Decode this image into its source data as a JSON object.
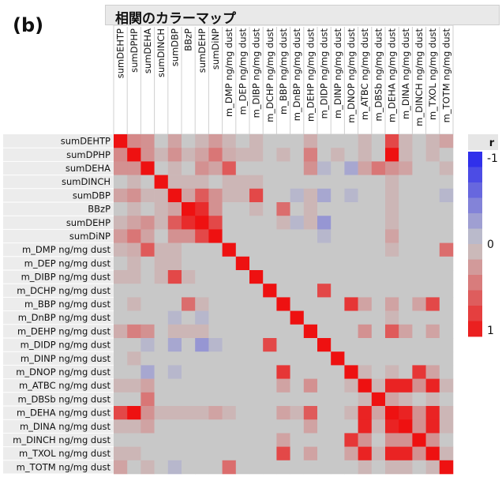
{
  "panel_label": "(b)",
  "title": "相関のカラーマップ",
  "chart_data": {
    "type": "heatmap",
    "title": "相関のカラーマップ",
    "variables": [
      "sumDEHTP",
      "sumDPHP",
      "sumDEHA",
      "sumDINCH",
      "sumDBP",
      "BBzP",
      "sumDEHP",
      "sumDiNP",
      "m_DMP ng/mg dust",
      "m_DEP ng/mg dust",
      "m_DIBP ng/mg dust",
      "m_DCHP ng/mg dust",
      "m_BBP ng/mg dust",
      "m_DnBP ng/mg dust",
      "m_DEHP ng/mg dust",
      "m_DIDP ng/mg dust",
      "m_DINP ng/mg dust",
      "m_DNOP ng/mg dust",
      "m_ATBC ng/mg dust",
      "m_DBSb ng/mg dust",
      "m_DEHA ng/mg dust",
      "m_DINA ng/mg dust",
      "m_DINCH ng/mg dust",
      "m_TXOL ng/mg dust",
      "m_TOTM ng/mg dust"
    ],
    "matrix": [
      [
        1,
        0.35,
        0.3,
        0,
        0.2,
        0,
        0.1,
        0.25,
        0.1,
        0,
        0.1,
        0,
        0,
        0,
        0.15,
        0,
        0,
        0,
        0.1,
        0,
        0.7,
        0.1,
        0,
        0.1,
        0.2
      ],
      [
        0.35,
        1,
        0.3,
        0.1,
        0.3,
        0.1,
        0.2,
        0.45,
        0.15,
        0.1,
        0.1,
        0,
        0.1,
        0,
        0.4,
        0,
        0.1,
        0,
        0.1,
        0,
        1.0,
        0.1,
        0,
        0.1,
        0
      ],
      [
        0.3,
        0.3,
        1,
        0,
        0.1,
        0,
        0.3,
        0.2,
        0.6,
        0,
        0,
        0,
        0,
        0,
        0.3,
        -0.1,
        0,
        -0.2,
        0.2,
        0.45,
        0.3,
        0.2,
        0,
        0,
        0.1
      ],
      [
        0,
        0.1,
        0,
        1,
        0.1,
        0.1,
        0.1,
        0,
        0.1,
        0.1,
        0.1,
        0,
        0,
        0,
        0,
        0,
        0,
        0,
        0,
        0,
        0.1,
        0,
        0,
        0,
        0
      ],
      [
        0.2,
        0.3,
        0.1,
        0.1,
        1,
        0.2,
        0.6,
        0.3,
        0.1,
        0.1,
        0.7,
        0,
        0,
        -0.1,
        0.1,
        -0.2,
        0,
        -0.1,
        0,
        0,
        0.1,
        0,
        0,
        0,
        -0.1
      ],
      [
        0,
        0.1,
        0,
        0.1,
        0.2,
        1,
        0.85,
        0.3,
        0,
        0,
        0.1,
        0,
        0.5,
        0,
        0.1,
        0,
        0,
        0,
        0,
        0,
        0.1,
        0,
        0,
        0,
        0
      ],
      [
        0.1,
        0.2,
        0.3,
        0.1,
        0.6,
        0.85,
        1,
        0.7,
        0,
        0,
        0,
        0,
        0.1,
        -0.1,
        0.1,
        -0.3,
        0,
        0,
        0,
        0,
        0.1,
        0,
        0,
        0,
        0
      ],
      [
        0.25,
        0.45,
        0.2,
        0,
        0.3,
        0.3,
        0.7,
        1,
        0,
        0,
        0,
        0,
        0,
        0,
        0,
        -0.1,
        0,
        0,
        0,
        0,
        0.2,
        0,
        0,
        0,
        0
      ],
      [
        0.1,
        0.15,
        0.6,
        0.1,
        0.1,
        0,
        0,
        0,
        1,
        0,
        0,
        0,
        0,
        0,
        0,
        0,
        0,
        0,
        0,
        0,
        0.1,
        0,
        0,
        0,
        0.5
      ],
      [
        0,
        0.1,
        0,
        0.1,
        0.1,
        0,
        0,
        0,
        0,
        1,
        0,
        0,
        0,
        0,
        0,
        0,
        0,
        0,
        0,
        0,
        0,
        0,
        0,
        0,
        0
      ],
      [
        0.1,
        0.1,
        0,
        0.1,
        0.7,
        0.1,
        0,
        0,
        0,
        0,
        1,
        0,
        0,
        0,
        0,
        0,
        0,
        0,
        0,
        0,
        0,
        0,
        0,
        0,
        0
      ],
      [
        0,
        0,
        0,
        0,
        0,
        0,
        0,
        0,
        0,
        0,
        0,
        1,
        0,
        0,
        0,
        0.7,
        0,
        0,
        0,
        0,
        0,
        0,
        0,
        0,
        0
      ],
      [
        0,
        0.1,
        0,
        0,
        0,
        0.5,
        0.1,
        0,
        0,
        0,
        0,
        0,
        1,
        0,
        0,
        0,
        0,
        0.8,
        0.2,
        0,
        0.2,
        0,
        0.2,
        0.7,
        0
      ],
      [
        0,
        0,
        0,
        0,
        -0.1,
        0,
        -0.1,
        0,
        0,
        0,
        0,
        0,
        0,
        1,
        0,
        0,
        0,
        0,
        0,
        0,
        0.1,
        0,
        0,
        0,
        0
      ],
      [
        0.15,
        0.4,
        0.3,
        0,
        0.1,
        0.1,
        0.1,
        0,
        0,
        0,
        0,
        0,
        0,
        0,
        1,
        0,
        0,
        0,
        0.3,
        0,
        0.6,
        0.2,
        0,
        0.2,
        0
      ],
      [
        0,
        0,
        -0.1,
        0,
        -0.2,
        0,
        -0.3,
        -0.1,
        0,
        0,
        0,
        0.7,
        0,
        0,
        0,
        1,
        0,
        0,
        0,
        0,
        0,
        0,
        0,
        0,
        0
      ],
      [
        0,
        0.1,
        0,
        0,
        0,
        0,
        0,
        0,
        0,
        0,
        0,
        0,
        0,
        0,
        0,
        0,
        1,
        0,
        0,
        0,
        0,
        0,
        0,
        0,
        0
      ],
      [
        0,
        0,
        -0.2,
        0,
        -0.1,
        0,
        0,
        0,
        0,
        0,
        0,
        0,
        0.8,
        0,
        0,
        0,
        0,
        1,
        0.1,
        0,
        0.1,
        0,
        0.8,
        0.2,
        0
      ],
      [
        0.1,
        0.1,
        0.2,
        0,
        0,
        0,
        0,
        0,
        0,
        0,
        0,
        0,
        0.2,
        0,
        0.3,
        0,
        0,
        0.1,
        1,
        0.1,
        0.9,
        0.9,
        0.3,
        0.9,
        0.1
      ],
      [
        0,
        0,
        0.45,
        0,
        0,
        0,
        0,
        0,
        0,
        0,
        0,
        0,
        0,
        0,
        0,
        0,
        0,
        0,
        0.1,
        1,
        0.2,
        0.1,
        0,
        0.1,
        0
      ],
      [
        0.7,
        1.0,
        0.3,
        0.1,
        0.1,
        0.1,
        0.1,
        0.2,
        0.1,
        0,
        0,
        0,
        0.2,
        0.1,
        0.6,
        0,
        0,
        0.1,
        0.9,
        0.2,
        1,
        0.9,
        0.3,
        0.9,
        0.1
      ],
      [
        0.1,
        0.1,
        0.2,
        0,
        0,
        0,
        0,
        0,
        0,
        0,
        0,
        0,
        0,
        0,
        0.2,
        0,
        0,
        0,
        0.9,
        0.1,
        0.9,
        1,
        0.3,
        0.9,
        0.1
      ],
      [
        0,
        0,
        0,
        0,
        0,
        0,
        0,
        0,
        0,
        0,
        0,
        0,
        0.2,
        0,
        0,
        0,
        0,
        0.8,
        0.3,
        0,
        0.3,
        0.3,
        1,
        0.3,
        0
      ],
      [
        0.1,
        0.1,
        0,
        0,
        0,
        0,
        0,
        0,
        0,
        0,
        0,
        0,
        0.7,
        0,
        0.2,
        0,
        0,
        0.2,
        0.9,
        0.1,
        0.9,
        0.9,
        0.3,
        1,
        0.1
      ],
      [
        0.2,
        0,
        0.1,
        0,
        -0.1,
        0,
        0,
        0,
        0.5,
        0,
        0,
        0,
        0,
        0,
        0,
        0,
        0,
        0,
        0.1,
        0,
        0.1,
        0.1,
        0,
        0.1,
        1
      ]
    ],
    "legend": {
      "title": "r",
      "ticks": [
        "-1",
        "0",
        "1"
      ],
      "range": [
        -1,
        1
      ],
      "placement": "right"
    },
    "colors": {
      "negative": "#2222ee",
      "neutral": "#c8c8c8",
      "positive": "#ee1111"
    }
  }
}
